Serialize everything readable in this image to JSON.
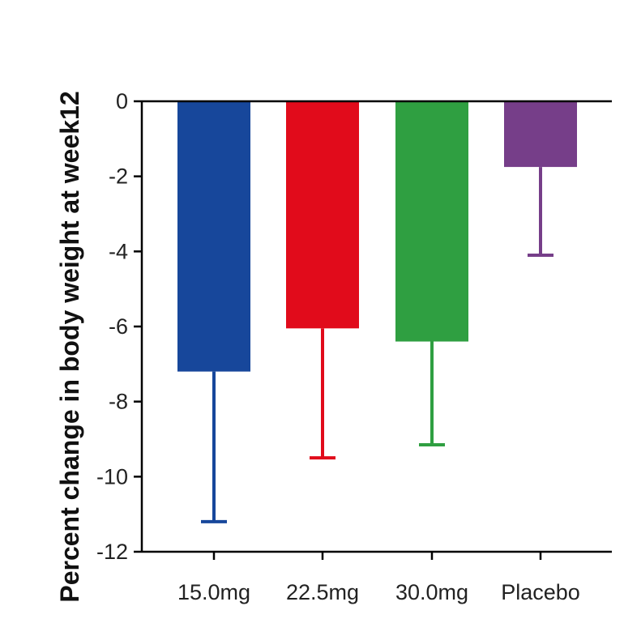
{
  "chart_data": {
    "type": "bar",
    "title": "",
    "xlabel": "",
    "ylabel": "Percent change in body weight  at  week12",
    "categories": [
      "15.0mg",
      "22.5mg",
      "30.0mg",
      "Placebo"
    ],
    "values": [
      -7.2,
      -6.05,
      -6.4,
      -1.75
    ],
    "error_lower": [
      -11.2,
      -9.5,
      -9.15,
      -4.1
    ],
    "colors": [
      "#17479b",
      "#e10b1b",
      "#2f9f41",
      "#763e89"
    ],
    "ylim": [
      -12,
      0
    ],
    "yticks": [
      "0",
      "-2",
      "-4",
      "-6",
      "-8",
      "-10",
      "-12"
    ],
    "ytick_values": [
      0,
      -2,
      -4,
      -6,
      -8,
      -10,
      -12
    ],
    "grid": false,
    "legend": "none"
  }
}
